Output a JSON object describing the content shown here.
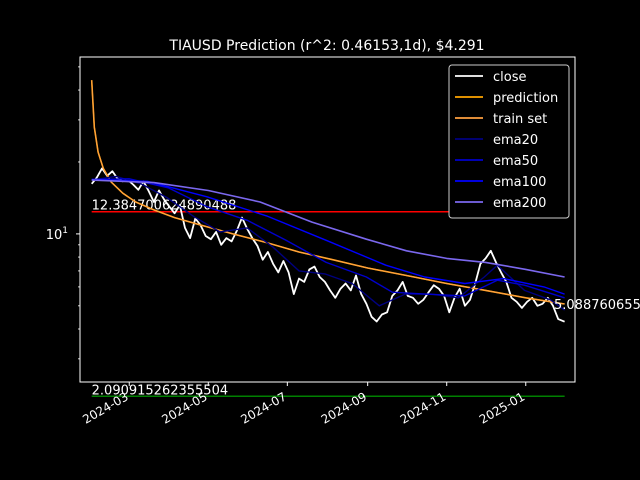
{
  "chart_data": {
    "type": "line",
    "title": "TIAUSD Prediction (r^2: 0.46153,1d), $4.291",
    "xlabel": "",
    "ylabel": "",
    "y_scale": "log",
    "ylim": [
      2.4,
      55
    ],
    "xlim": [
      "2024-01-23",
      "2025-02-08"
    ],
    "x_ticks": [
      "2024-03",
      "2024-05",
      "2024-07",
      "2024-09",
      "2024-11",
      "2025-01"
    ],
    "y_ticks": [
      {
        "value": 10,
        "label": "10^1"
      }
    ],
    "grid": false,
    "legend_position": "upper right",
    "horizontal_lines": [
      {
        "value": 12.384700624890488,
        "label": "12.384700624890488",
        "color": "#ff0000",
        "x_start": "2024-02-01",
        "x_end": "2025-01-31"
      },
      {
        "value": 2.090915262355504,
        "label": "2.090915262355504",
        "color": "#008000",
        "x_start": "2024-02-01",
        "x_end": "2025-01-31"
      }
    ],
    "right_label": {
      "value": 5.088760655,
      "label": "5.0887606550"
    },
    "series": [
      {
        "name": "close",
        "color": "#ffffff",
        "width": 1.8,
        "points": [
          [
            "2024-02-01",
            16.2
          ],
          [
            "2024-02-05",
            17.2
          ],
          [
            "2024-02-09",
            18.8
          ],
          [
            "2024-02-13",
            17.5
          ],
          [
            "2024-02-17",
            18.3
          ],
          [
            "2024-02-21",
            17.0
          ],
          [
            "2024-02-25",
            16.6
          ],
          [
            "2024-02-29",
            16.8
          ],
          [
            "2024-03-04",
            16.1
          ],
          [
            "2024-03-08",
            15.3
          ],
          [
            "2024-03-12",
            16.6
          ],
          [
            "2024-03-16",
            15.1
          ],
          [
            "2024-03-20",
            13.6
          ],
          [
            "2024-03-24",
            15.2
          ],
          [
            "2024-03-28",
            13.9
          ],
          [
            "2024-04-01",
            13.0
          ],
          [
            "2024-04-05",
            12.2
          ],
          [
            "2024-04-09",
            13.2
          ],
          [
            "2024-04-13",
            10.6
          ],
          [
            "2024-04-17",
            9.6
          ],
          [
            "2024-04-21",
            11.6
          ],
          [
            "2024-04-25",
            10.9
          ],
          [
            "2024-04-29",
            9.8
          ],
          [
            "2024-05-03",
            9.5
          ],
          [
            "2024-05-07",
            10.2
          ],
          [
            "2024-05-11",
            9.0
          ],
          [
            "2024-05-15",
            9.6
          ],
          [
            "2024-05-19",
            9.3
          ],
          [
            "2024-05-23",
            10.3
          ],
          [
            "2024-05-27",
            11.7
          ],
          [
            "2024-05-31",
            10.5
          ],
          [
            "2024-06-04",
            9.6
          ],
          [
            "2024-06-08",
            8.9
          ],
          [
            "2024-06-12",
            7.8
          ],
          [
            "2024-06-16",
            8.4
          ],
          [
            "2024-06-20",
            7.5
          ],
          [
            "2024-06-24",
            6.9
          ],
          [
            "2024-06-28",
            7.7
          ],
          [
            "2024-07-02",
            6.9
          ],
          [
            "2024-07-06",
            5.6
          ],
          [
            "2024-07-10",
            6.5
          ],
          [
            "2024-07-14",
            6.3
          ],
          [
            "2024-07-18",
            7.1
          ],
          [
            "2024-07-22",
            7.3
          ],
          [
            "2024-07-26",
            6.6
          ],
          [
            "2024-07-30",
            6.3
          ],
          [
            "2024-08-03",
            5.8
          ],
          [
            "2024-08-07",
            5.4
          ],
          [
            "2024-08-11",
            5.9
          ],
          [
            "2024-08-15",
            6.2
          ],
          [
            "2024-08-19",
            5.8
          ],
          [
            "2024-08-23",
            6.7
          ],
          [
            "2024-08-27",
            5.6
          ],
          [
            "2024-08-31",
            5.1
          ],
          [
            "2024-09-04",
            4.5
          ],
          [
            "2024-09-08",
            4.3
          ],
          [
            "2024-09-12",
            4.6
          ],
          [
            "2024-09-16",
            4.7
          ],
          [
            "2024-09-20",
            5.5
          ],
          [
            "2024-09-24",
            5.8
          ],
          [
            "2024-09-28",
            6.3
          ],
          [
            "2024-10-02",
            5.5
          ],
          [
            "2024-10-06",
            5.4
          ],
          [
            "2024-10-10",
            5.1
          ],
          [
            "2024-10-14",
            5.3
          ],
          [
            "2024-10-18",
            5.7
          ],
          [
            "2024-10-22",
            6.1
          ],
          [
            "2024-10-26",
            5.9
          ],
          [
            "2024-10-30",
            5.5
          ],
          [
            "2024-11-03",
            4.7
          ],
          [
            "2024-11-07",
            5.4
          ],
          [
            "2024-11-11",
            5.9
          ],
          [
            "2024-11-15",
            5.0
          ],
          [
            "2024-11-19",
            5.3
          ],
          [
            "2024-11-23",
            6.2
          ],
          [
            "2024-11-27",
            7.5
          ],
          [
            "2024-12-01",
            7.9
          ],
          [
            "2024-12-05",
            8.5
          ],
          [
            "2024-12-09",
            7.6
          ],
          [
            "2024-12-13",
            6.9
          ],
          [
            "2024-12-17",
            6.3
          ],
          [
            "2024-12-21",
            5.4
          ],
          [
            "2024-12-25",
            5.2
          ],
          [
            "2024-12-29",
            4.9
          ],
          [
            "2025-01-02",
            5.2
          ],
          [
            "2025-01-06",
            5.4
          ],
          [
            "2025-01-10",
            5.0
          ],
          [
            "2025-01-14",
            5.1
          ],
          [
            "2025-01-18",
            5.4
          ],
          [
            "2025-01-22",
            5.0
          ],
          [
            "2025-01-26",
            4.4
          ],
          [
            "2025-01-31",
            4.291
          ]
        ]
      },
      {
        "name": "prediction",
        "color": "#ffa500",
        "width": 1.6,
        "points": [
          [
            "2024-02-01",
            44.0
          ],
          [
            "2024-02-03",
            28.0
          ],
          [
            "2024-02-06",
            22.0
          ],
          [
            "2024-02-10",
            18.8
          ],
          [
            "2024-02-16",
            16.5
          ],
          [
            "2024-02-25",
            14.8
          ],
          [
            "2024-03-06",
            13.6
          ],
          [
            "2024-03-20",
            12.6
          ],
          [
            "2024-04-05",
            11.7
          ],
          [
            "2024-04-25",
            10.9
          ],
          [
            "2024-05-20",
            10.0
          ],
          [
            "2024-06-15",
            9.2
          ],
          [
            "2024-07-10",
            8.4
          ],
          [
            "2024-08-05",
            7.8
          ],
          [
            "2024-09-01",
            7.2
          ],
          [
            "2024-10-01",
            6.7
          ],
          [
            "2024-11-01",
            6.2
          ],
          [
            "2024-12-01",
            5.8
          ],
          [
            "2025-01-01",
            5.4
          ],
          [
            "2025-01-31",
            5.088760655
          ]
        ]
      },
      {
        "name": "train set",
        "color": "#ffa040",
        "width": 1.2,
        "points": [
          [
            "2024-02-01",
            44.0
          ],
          [
            "2024-02-03",
            28.0
          ],
          [
            "2024-02-06",
            22.0
          ],
          [
            "2024-02-10",
            18.8
          ],
          [
            "2024-02-16",
            16.5
          ],
          [
            "2024-02-25",
            14.8
          ],
          [
            "2024-03-06",
            13.6
          ],
          [
            "2024-03-20",
            12.6
          ],
          [
            "2024-04-05",
            11.7
          ],
          [
            "2024-04-25",
            10.9
          ],
          [
            "2024-05-20",
            10.0
          ],
          [
            "2024-06-15",
            9.2
          ],
          [
            "2024-07-10",
            8.4
          ],
          [
            "2024-08-05",
            7.8
          ],
          [
            "2024-09-01",
            7.2
          ],
          [
            "2024-10-01",
            6.7
          ],
          [
            "2024-11-01",
            6.2
          ],
          [
            "2024-12-01",
            5.8
          ],
          [
            "2025-01-01",
            5.4
          ],
          [
            "2025-01-31",
            5.088760655
          ]
        ]
      },
      {
        "name": "ema20",
        "color": "#000080",
        "width": 1.4,
        "points": [
          [
            "2024-02-01",
            16.8
          ],
          [
            "2024-02-20",
            17.4
          ],
          [
            "2024-03-10",
            16.2
          ],
          [
            "2024-03-30",
            14.2
          ],
          [
            "2024-04-20",
            11.8
          ],
          [
            "2024-05-10",
            10.2
          ],
          [
            "2024-05-31",
            10.6
          ],
          [
            "2024-06-20",
            8.8
          ],
          [
            "2024-07-10",
            7.0
          ],
          [
            "2024-07-30",
            6.8
          ],
          [
            "2024-08-20",
            6.2
          ],
          [
            "2024-09-10",
            5.0
          ],
          [
            "2024-09-30",
            5.6
          ],
          [
            "2024-10-20",
            5.6
          ],
          [
            "2024-11-10",
            5.4
          ],
          [
            "2024-11-30",
            6.6
          ],
          [
            "2024-12-10",
            7.4
          ],
          [
            "2024-12-31",
            5.8
          ],
          [
            "2025-01-20",
            5.3
          ],
          [
            "2025-01-31",
            4.8
          ]
        ]
      },
      {
        "name": "ema50",
        "color": "#0000cd",
        "width": 1.4,
        "points": [
          [
            "2024-02-01",
            16.9
          ],
          [
            "2024-03-01",
            17.0
          ],
          [
            "2024-03-31",
            15.6
          ],
          [
            "2024-04-30",
            13.0
          ],
          [
            "2024-05-31",
            11.4
          ],
          [
            "2024-06-30",
            9.4
          ],
          [
            "2024-07-31",
            7.6
          ],
          [
            "2024-08-31",
            6.6
          ],
          [
            "2024-09-20",
            5.7
          ],
          [
            "2024-10-15",
            5.6
          ],
          [
            "2024-11-15",
            5.5
          ],
          [
            "2024-12-10",
            6.4
          ],
          [
            "2024-12-31",
            6.1
          ],
          [
            "2025-01-31",
            5.4
          ]
        ]
      },
      {
        "name": "ema100",
        "color": "#0000ff",
        "width": 1.4,
        "points": [
          [
            "2024-02-01",
            16.9
          ],
          [
            "2024-03-15",
            16.6
          ],
          [
            "2024-04-30",
            14.3
          ],
          [
            "2024-06-15",
            11.9
          ],
          [
            "2024-07-31",
            9.4
          ],
          [
            "2024-09-15",
            7.4
          ],
          [
            "2024-10-15",
            6.6
          ],
          [
            "2024-11-15",
            6.2
          ],
          [
            "2024-12-15",
            6.5
          ],
          [
            "2025-01-15",
            6.0
          ],
          [
            "2025-01-31",
            5.6
          ]
        ]
      },
      {
        "name": "ema200",
        "color": "#7b68ee",
        "width": 1.6,
        "points": [
          [
            "2024-02-01",
            16.8
          ],
          [
            "2024-03-20",
            16.4
          ],
          [
            "2024-05-01",
            15.2
          ],
          [
            "2024-06-10",
            13.6
          ],
          [
            "2024-07-20",
            11.2
          ],
          [
            "2024-08-31",
            9.5
          ],
          [
            "2024-10-01",
            8.5
          ],
          [
            "2024-11-01",
            7.9
          ],
          [
            "2024-12-01",
            7.6
          ],
          [
            "2025-01-01",
            7.1
          ],
          [
            "2025-01-31",
            6.6
          ]
        ]
      }
    ]
  }
}
